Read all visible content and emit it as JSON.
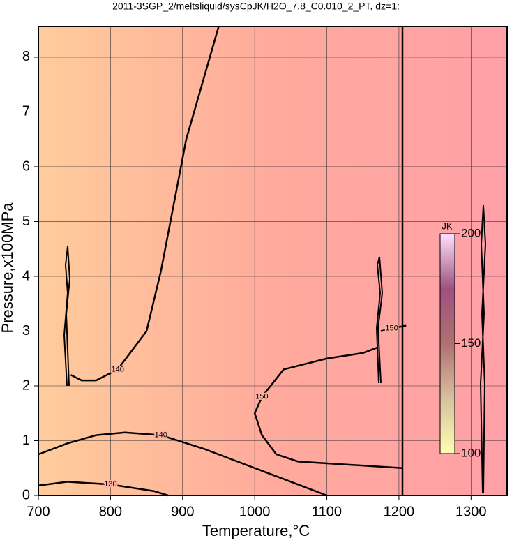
{
  "chart_data": {
    "type": "contour",
    "title": "2011-3SGP_2/meltsliquid/sysCpJK/H2O_7.8_C0.010_2_PT, dz=1:",
    "x_label": "Temperature,°C",
    "y_label": "Pressure,x100MPa",
    "xlim": [
      700,
      1350
    ],
    "ylim": [
      0,
      8.56
    ],
    "xticks": [
      700,
      800,
      900,
      1000,
      1100,
      1200,
      1300
    ],
    "yticks": [
      0,
      1,
      2,
      3,
      4,
      5,
      6,
      7,
      8
    ],
    "grid": true,
    "contours": [
      {
        "level": 140,
        "x": [
          950,
          905,
          870,
          850,
          810,
          780,
          760,
          745
        ],
        "y": [
          8.56,
          6.5,
          4.1,
          3.0,
          2.3,
          2.1,
          2.1,
          2.2
        ]
      },
      {
        "level": 140,
        "x": [
          700,
          740,
          780,
          820,
          870,
          930,
          1000,
          1060,
          1100
        ],
        "y": [
          0.75,
          0.95,
          1.1,
          1.15,
          1.1,
          0.85,
          0.5,
          0.2,
          0
        ]
      },
      {
        "level": 130,
        "x": [
          700,
          740,
          800,
          860,
          880
        ],
        "y": [
          0.18,
          0.25,
          0.2,
          0.08,
          0
        ]
      },
      {
        "level": 150,
        "x": [
          1205,
          1060,
          1030,
          1010,
          1000,
          1010,
          1040,
          1100,
          1150,
          1170
        ],
        "y": [
          0.5,
          0.62,
          0.75,
          1.1,
          1.5,
          1.8,
          2.3,
          2.5,
          2.6,
          2.7
        ]
      },
      {
        "level": 150,
        "x": [
          1175,
          1190,
          1210
        ],
        "y": [
          3.0,
          3.05,
          3.1
        ]
      }
    ],
    "colorbar": {
      "label": "JK",
      "lim": [
        100,
        200
      ],
      "ticks": [
        100,
        150,
        200
      ],
      "colors": [
        "#ffffb0",
        "#d8c0a0",
        "#b07070",
        "#a05080",
        "#ffe0ff"
      ]
    }
  }
}
